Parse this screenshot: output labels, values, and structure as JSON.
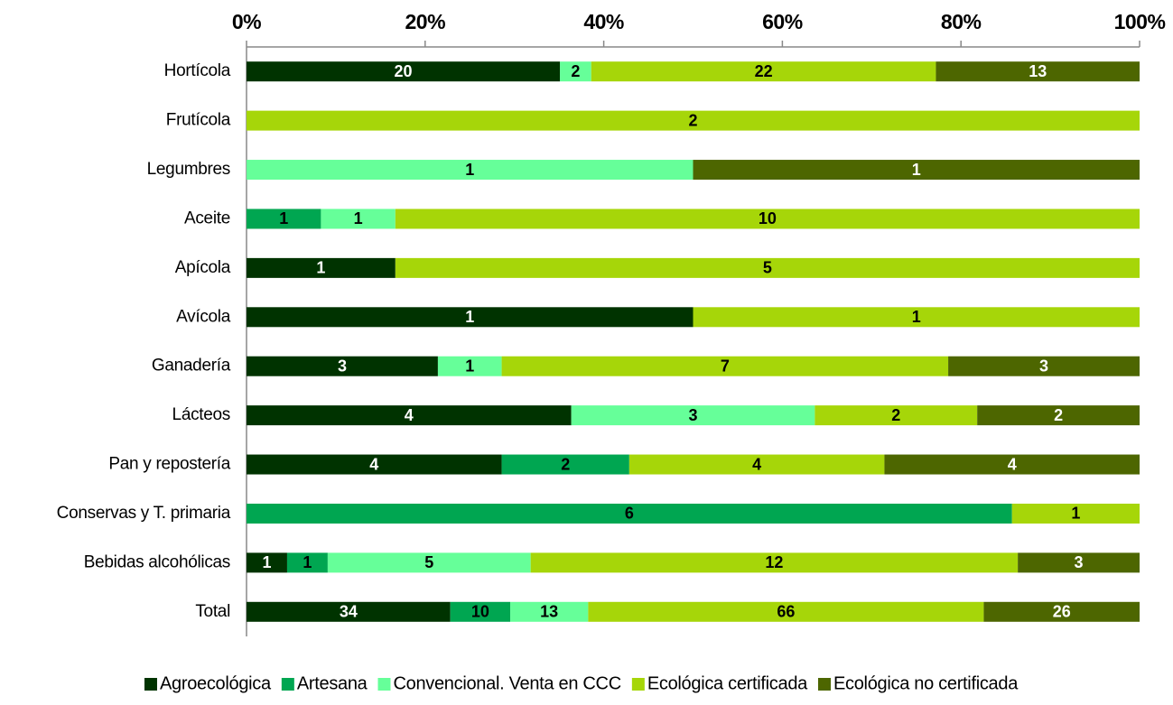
{
  "chart_data": {
    "type": "bar",
    "orientation": "horizontal",
    "stacked": "percent",
    "categories": [
      "Hortícola",
      "Frutícola",
      "Legumbres",
      "Aceite",
      "Apícola",
      "Avícola",
      "Ganadería",
      "Lácteos",
      "Pan y repostería",
      "Conservas y T. primaria",
      "Bebidas alcohólicas",
      "Total"
    ],
    "series": [
      {
        "name": "Agroecológica",
        "color": "#003300",
        "label_color": "#ffffff",
        "values": [
          20,
          null,
          null,
          null,
          1,
          1,
          3,
          4,
          4,
          null,
          1,
          34
        ]
      },
      {
        "name": "Artesana",
        "color": "#00a651",
        "label_color": "#000000",
        "values": [
          null,
          null,
          null,
          1,
          null,
          null,
          null,
          null,
          2,
          6,
          1,
          10
        ]
      },
      {
        "name": "Convencional. Venta en CCC",
        "color": "#66ff99",
        "label_color": "#000000",
        "values": [
          2,
          null,
          1,
          1,
          null,
          null,
          1,
          3,
          null,
          null,
          5,
          13
        ]
      },
      {
        "name": "Ecológica certificada",
        "color": "#a6d609",
        "label_color": "#000000",
        "values": [
          22,
          2,
          null,
          10,
          5,
          1,
          7,
          2,
          4,
          1,
          12,
          66
        ]
      },
      {
        "name": "Ecológica no certificada",
        "color": "#4d6600",
        "label_color": "#ffffff",
        "values": [
          13,
          null,
          1,
          null,
          null,
          null,
          3,
          2,
          4,
          null,
          3,
          26
        ]
      }
    ],
    "xlim": [
      0,
      100
    ],
    "xticks": [
      {
        "value": 0,
        "label": "0%"
      },
      {
        "value": 20,
        "label": "20%"
      },
      {
        "value": 40,
        "label": "40%"
      },
      {
        "value": 60,
        "label": "60%"
      },
      {
        "value": 80,
        "label": "80%"
      },
      {
        "value": 100,
        "label": "100%"
      }
    ],
    "legend": "bottom"
  }
}
